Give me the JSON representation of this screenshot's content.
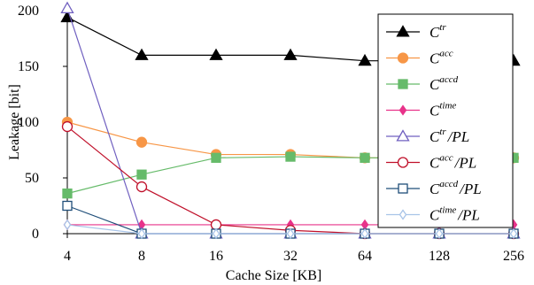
{
  "chart_data": {
    "type": "line",
    "xlabel": "Cache Size [KB]",
    "ylabel": "Leakage [bit]",
    "categories": [
      "4",
      "8",
      "16",
      "32",
      "64",
      "128",
      "256"
    ],
    "yticks": [
      "0",
      "50",
      "100",
      "150",
      "200"
    ],
    "ylim": [
      0,
      200
    ],
    "grid": false,
    "legend_position": "right",
    "series": [
      {
        "name": "C",
        "sup": "tr",
        "suffix": "",
        "marker": "triangle",
        "filled": true,
        "color": "#000000",
        "values": [
          194,
          160,
          160,
          160,
          155,
          155,
          155
        ]
      },
      {
        "name": "C",
        "sup": "acc",
        "suffix": "",
        "marker": "circle",
        "filled": true,
        "color": "#f79646",
        "values": [
          100,
          82,
          71,
          71,
          68,
          68,
          68
        ]
      },
      {
        "name": "C",
        "sup": "accd",
        "suffix": "",
        "marker": "square",
        "filled": true,
        "color": "#66bb6a",
        "values": [
          36,
          53,
          68,
          69,
          68,
          68,
          68
        ]
      },
      {
        "name": "C",
        "sup": "time",
        "suffix": "",
        "marker": "diamond",
        "filled": true,
        "color": "#e8338a",
        "values": [
          8,
          8,
          8,
          8,
          8,
          8,
          8
        ]
      },
      {
        "name": "C",
        "sup": "tr",
        "suffix": "/PL",
        "marker": "triangle",
        "filled": false,
        "color": "#7060c0",
        "values": [
          202,
          0,
          0,
          0,
          0,
          0,
          0
        ]
      },
      {
        "name": "C",
        "sup": "acc",
        "suffix": "/PL",
        "marker": "circle",
        "filled": false,
        "color": "#c0102a",
        "values": [
          96,
          42,
          8,
          3,
          0,
          0,
          0
        ]
      },
      {
        "name": "C",
        "sup": "accd",
        "suffix": "/PL",
        "marker": "square",
        "filled": false,
        "color": "#1f4e79",
        "values": [
          25,
          0,
          0,
          0,
          0,
          0,
          0
        ]
      },
      {
        "name": "C",
        "sup": "time",
        "suffix": "/PL",
        "marker": "diamond",
        "filled": false,
        "color": "#a8c4e8",
        "values": [
          8,
          0,
          0,
          0,
          0,
          0,
          0
        ]
      }
    ]
  }
}
